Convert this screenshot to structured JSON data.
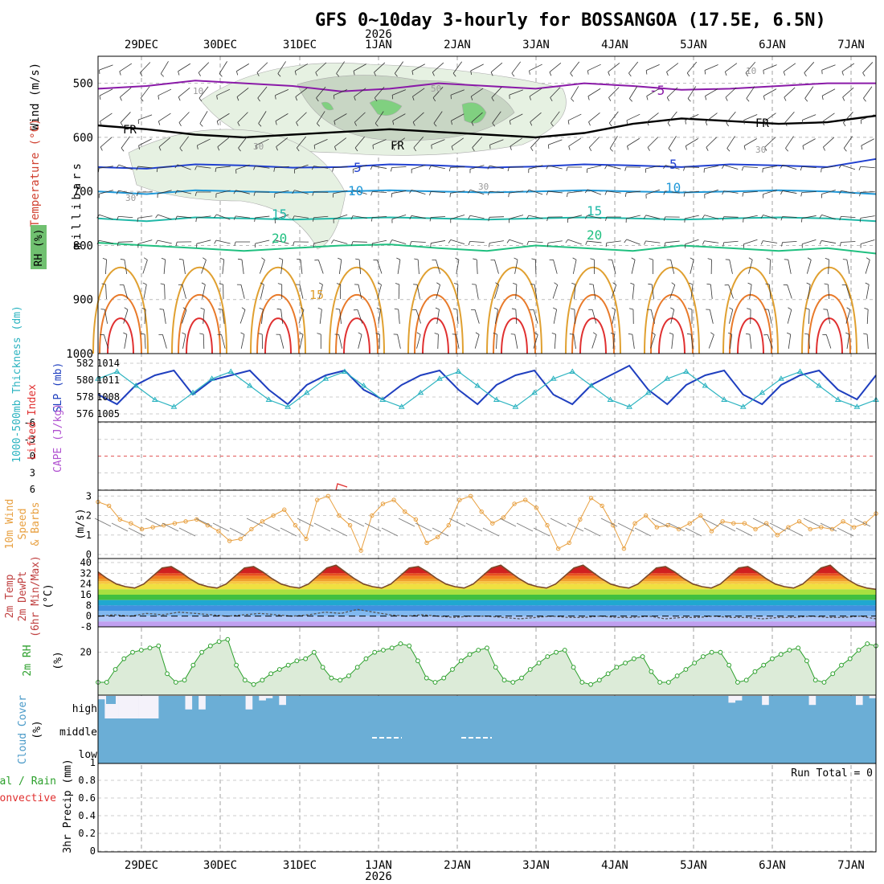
{
  "title": "GFS 0~10day 3-hourly for BOSSANGOA (17.5E, 6.5N)",
  "year_label": "2026",
  "dates": [
    "29DEC",
    "30DEC",
    "31DEC",
    "1JAN",
    "2JAN",
    "3JAN",
    "4JAN",
    "5JAN",
    "6JAN",
    "7JAN"
  ],
  "colors": {
    "cloud": "#6baed6",
    "rh_fill": "#dcebd8",
    "rh_line": "#2ca02c",
    "slp": "#1f3fbf",
    "thick": "#2bb3c0",
    "wind10": "#e8a040",
    "temp_line": "#7a4a2a"
  },
  "chart_data": [
    {
      "type": "contour",
      "name": "upper-air cross section",
      "ylabel": "millibars",
      "ylabels": {
        "wind": "Wind (m/s)",
        "temperature": "Temperature (°C)",
        "rh": "RH (%)"
      },
      "ylim": [
        1000,
        450
      ],
      "yticks": [
        500,
        600,
        700,
        800,
        900,
        1000
      ],
      "freezing_label": "FR",
      "isotherm_labels": [
        "-5",
        "5",
        "10",
        "15",
        "20",
        "15"
      ],
      "rh_labels": [
        "10",
        "30",
        "50"
      ],
      "isotherms": [
        {
          "label": "-5",
          "levels": [
            510,
            505,
            495,
            500,
            505,
            515,
            510,
            500,
            505,
            510,
            500,
            505,
            512,
            510,
            505,
            500,
            500
          ]
        },
        {
          "label": "0",
          "levels": [
            578,
            585,
            595,
            600,
            595,
            590,
            585,
            590,
            595,
            600,
            592,
            575,
            565,
            570,
            575,
            572,
            560
          ]
        },
        {
          "label": "5",
          "levels": [
            655,
            658,
            650,
            652,
            656,
            655,
            650,
            652,
            656,
            654,
            650,
            652,
            655,
            650,
            652,
            655,
            640
          ]
        },
        {
          "label": "10",
          "levels": [
            700,
            705,
            698,
            700,
            702,
            700,
            698,
            700,
            702,
            700,
            698,
            700,
            702,
            700,
            698,
            700,
            705
          ]
        },
        {
          "label": "15",
          "levels": [
            750,
            755,
            748,
            750,
            752,
            750,
            748,
            750,
            752,
            750,
            748,
            750,
            752,
            750,
            748,
            750,
            755
          ]
        },
        {
          "label": "20",
          "levels": [
            795,
            800,
            805,
            810,
            805,
            800,
            798,
            805,
            810,
            800,
            805,
            810,
            800,
            805,
            810,
            805,
            815
          ]
        }
      ]
    },
    {
      "type": "line",
      "name": "thickness and sea level pressure",
      "ylabels": {
        "thickness": "1000-500mb Thickness (dm)",
        "slp": "SLP (mb)"
      },
      "left_ticks": [
        "582",
        "580",
        "578",
        "576"
      ],
      "right_ticks": [
        "1014",
        "1011",
        "1008",
        "1005"
      ],
      "series": [
        {
          "name": "SLP",
          "unit": "mb",
          "values": [
            1008,
            1006,
            1010,
            1012,
            1013,
            1008,
            1011,
            1012,
            1013,
            1009,
            1006,
            1010,
            1012,
            1013,
            1009,
            1007,
            1010,
            1012,
            1013,
            1009,
            1006,
            1010,
            1012,
            1013,
            1008,
            1006,
            1010,
            1012,
            1014,
            1009,
            1006,
            1010,
            1012,
            1013,
            1008,
            1006,
            1010,
            1012,
            1013,
            1009,
            1007,
            1012
          ]
        },
        {
          "name": "Thickness",
          "unit": "dm",
          "values": [
            580,
            581,
            579,
            577,
            576,
            578,
            580,
            581,
            579,
            577,
            576,
            578,
            580,
            581,
            579,
            577,
            576,
            578,
            580,
            581,
            579,
            577,
            576,
            578,
            580,
            581,
            579,
            577,
            576,
            578,
            580,
            581,
            579,
            577,
            576,
            578,
            580,
            581,
            579,
            577,
            576,
            577
          ]
        }
      ]
    },
    {
      "type": "line",
      "name": "lifted index and CAPE",
      "ylabels": {
        "li": "Lifted Index",
        "cape": "CAPE (J/kg)"
      },
      "yticks": [
        "-6",
        "-3",
        "0",
        "3",
        "6"
      ],
      "series": [
        {
          "name": "Lifted Index",
          "values": []
        }
      ]
    },
    {
      "type": "line",
      "name": "10m wind",
      "ylabels": [
        "10m Wind",
        "Speed",
        "& Barbs",
        "(m/s)"
      ],
      "ylim": [
        0,
        3.3
      ],
      "yticks": [
        "0",
        "1",
        "2",
        "3"
      ],
      "series": [
        {
          "name": "10m wind speed",
          "unit": "m/s",
          "values": [
            2.7,
            2.5,
            1.8,
            1.6,
            1.3,
            1.4,
            1.5,
            1.6,
            1.7,
            1.8,
            1.5,
            1.2,
            0.7,
            0.8,
            1.3,
            1.7,
            2.0,
            2.3,
            1.5,
            0.8,
            2.8,
            3.0,
            2.0,
            1.5,
            0.2,
            2.0,
            2.6,
            2.8,
            2.2,
            1.8,
            0.6,
            0.9,
            1.5,
            2.8,
            3.0,
            2.2,
            1.6,
            1.9,
            2.6,
            2.8,
            2.4,
            1.5,
            0.3,
            0.6,
            1.8,
            2.9,
            2.5,
            1.5,
            0.3,
            1.6,
            2.0,
            1.4,
            1.5,
            1.3,
            1.6,
            2.0,
            1.2,
            1.7,
            1.6,
            1.6,
            1.3,
            1.6,
            1.0,
            1.4,
            1.7,
            1.3,
            1.4,
            1.3,
            1.7,
            1.4,
            1.6,
            2.1
          ]
        }
      ]
    },
    {
      "type": "area",
      "name": "2m temperature",
      "ylabels": [
        "2m Temp",
        "2m DewPt",
        "(6hr Min/Max)",
        "(°C)"
      ],
      "ylim": [
        -8,
        40
      ],
      "yticks": [
        "40",
        "32",
        "24",
        "16",
        "8",
        "0",
        "-8"
      ],
      "series": [
        {
          "name": "2m Temp",
          "unit": "°C",
          "values": [
            33,
            28,
            24,
            22,
            21,
            24,
            30,
            36,
            37,
            33,
            28,
            24,
            22,
            21,
            24,
            30,
            36,
            37,
            33,
            28,
            24,
            22,
            21,
            24,
            30,
            36,
            38,
            33,
            28,
            24,
            22,
            21,
            24,
            30,
            36,
            37,
            33,
            28,
            24,
            22,
            21,
            24,
            30,
            36,
            38,
            33,
            28,
            24,
            22,
            21,
            24,
            30,
            36,
            38,
            33,
            28,
            24,
            22,
            21,
            24,
            30,
            36,
            37,
            33,
            28,
            24,
            22,
            21,
            24,
            30,
            36,
            37,
            33,
            28,
            24,
            22,
            21,
            24,
            30,
            36,
            38,
            32,
            27,
            23,
            21,
            20
          ]
        },
        {
          "name": "2m DewPt",
          "unit": "°C",
          "values": [
            0,
            1,
            0,
            2,
            1,
            3,
            2,
            1,
            0,
            1,
            2,
            1,
            0,
            1,
            3,
            2,
            5,
            3,
            1,
            0,
            1,
            0,
            -1,
            0,
            0,
            -1,
            -2,
            -1,
            0,
            -1,
            -1,
            0,
            -1,
            -1,
            0,
            -2,
            -1,
            -1,
            0,
            -1,
            -1,
            -2,
            -1,
            -1,
            0,
            -1,
            -1,
            0,
            -2
          ]
        }
      ]
    },
    {
      "type": "area",
      "name": "2m relative humidity",
      "ylabels": [
        "2m RH",
        "(%)"
      ],
      "ylim": [
        0,
        30
      ],
      "yticks": [
        "20"
      ],
      "series": [
        {
          "name": "2m RH",
          "unit": "%",
          "values": [
            6,
            6,
            12,
            17,
            20,
            21,
            22,
            23,
            10,
            6,
            7,
            14,
            20,
            23,
            25,
            26,
            14,
            7,
            5,
            7,
            10,
            12,
            14,
            16,
            17,
            20,
            13,
            8,
            7,
            9,
            13,
            17,
            20,
            21,
            22,
            24,
            23,
            16,
            8,
            6,
            8,
            12,
            16,
            19,
            21,
            22,
            13,
            7,
            6,
            8,
            12,
            15,
            18,
            20,
            21,
            13,
            6,
            5,
            7,
            10,
            13,
            15,
            17,
            18,
            11,
            6,
            6,
            9,
            12,
            15,
            18,
            20,
            20,
            14,
            6,
            7,
            11,
            14,
            17,
            19,
            21,
            22,
            16,
            7,
            6,
            10,
            14,
            17,
            21,
            24,
            23
          ]
        }
      ]
    },
    {
      "type": "area",
      "name": "cloud cover",
      "ylabels": [
        "Cloud Cover",
        "(%)"
      ],
      "levels": [
        "high",
        "middle",
        "low"
      ],
      "series": [
        {
          "name": "high cloud",
          "unit": "%",
          "values": [
            85,
            0,
            0,
            0,
            0,
            0,
            0,
            0,
            0,
            100,
            100,
            100,
            100,
            40,
            100,
            40,
            100,
            100,
            100,
            100,
            100,
            100,
            40,
            100,
            80,
            90,
            100,
            60,
            100,
            100,
            100,
            100,
            100,
            100,
            100,
            100,
            100,
            100,
            100,
            100,
            100,
            100,
            100,
            100,
            100,
            100,
            100,
            100,
            100,
            100,
            100,
            100,
            100,
            100,
            100,
            100,
            100,
            100,
            100,
            100,
            100,
            100,
            100,
            100,
            100,
            100,
            100,
            100,
            100,
            100,
            100,
            100,
            100,
            100,
            100,
            100,
            100,
            100,
            100,
            100,
            100,
            100,
            100,
            100,
            100,
            100,
            100,
            100,
            100,
            100,
            100,
            100,
            100,
            100,
            70,
            80,
            100,
            100,
            100,
            60,
            100,
            100,
            100,
            100,
            100,
            100,
            60,
            100,
            100,
            100,
            100,
            100,
            100,
            60,
            100,
            90
          ]
        }
      ]
    },
    {
      "type": "bar",
      "name": "3hr precipitation",
      "ylabels": [
        "3hr Precip (mm)",
        "Total / Rain",
        "Convective"
      ],
      "ylim": [
        0,
        1
      ],
      "yticks": [
        "0.8",
        "0.6",
        "0.4",
        "0.2",
        "0"
      ],
      "run_total_label": "Run Total = 0",
      "series": [
        {
          "name": "3hr precip",
          "unit": "mm",
          "values": [
            0,
            0,
            0,
            0,
            0,
            0,
            0,
            0,
            0,
            0
          ]
        }
      ]
    }
  ]
}
